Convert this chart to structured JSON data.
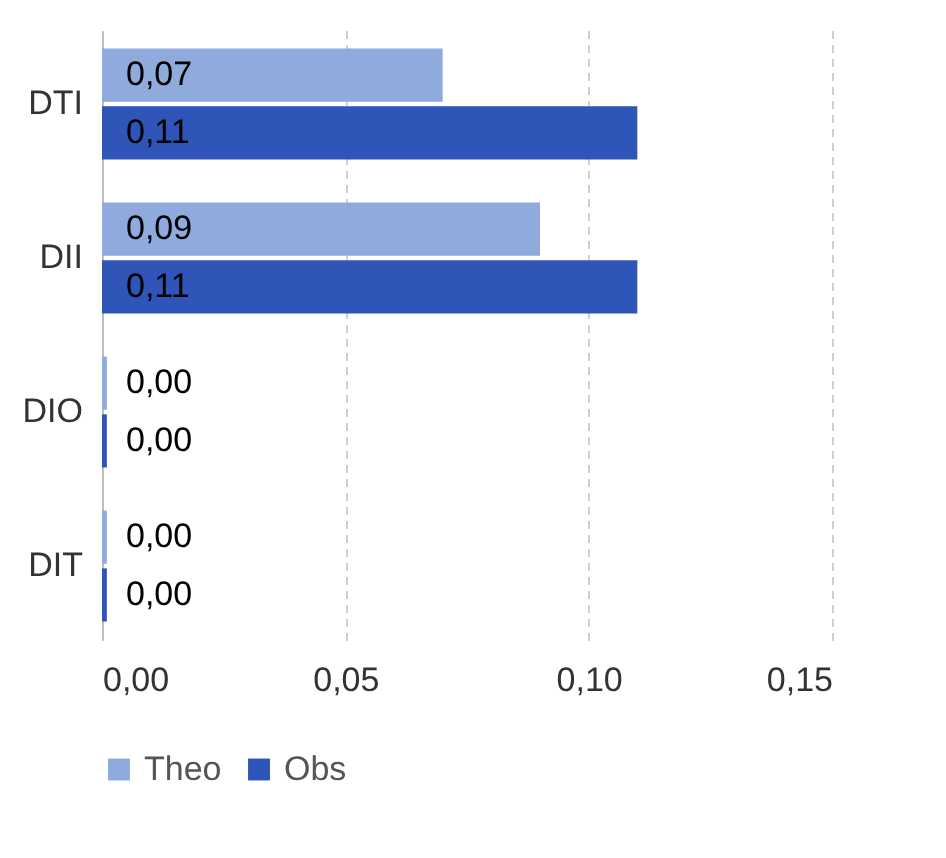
{
  "chart_data": {
    "type": "bar",
    "orientation": "horizontal",
    "categories": [
      "DTI",
      "DII",
      "DIO",
      "DIT"
    ],
    "series": [
      {
        "name": "Theo",
        "color": "#8faadc",
        "values": [
          0.07,
          0.09,
          0.001,
          0.001
        ],
        "value_labels": [
          "0,07",
          "0,09",
          "0,00",
          "0,00"
        ]
      },
      {
        "name": "Obs",
        "color": "#2f55b8",
        "values": [
          0.11,
          0.11,
          0.001,
          0.001
        ],
        "value_labels": [
          "0,11",
          "0,11",
          "0,00",
          "0,00"
        ]
      }
    ],
    "xlim": [
      0,
      0.15
    ],
    "xticks": [
      {
        "value": 0,
        "label": "0,00"
      },
      {
        "value": 0.05,
        "label": "0,05"
      },
      {
        "value": 0.1,
        "label": "0,10"
      },
      {
        "value": 0.15,
        "label": "0,15"
      }
    ],
    "grid": "x",
    "legend": "bottom"
  }
}
